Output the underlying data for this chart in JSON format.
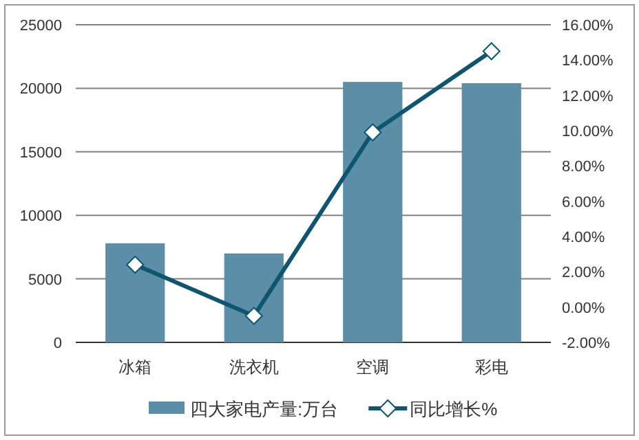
{
  "chart_data": {
    "type": "bar",
    "categories": [
      "冰箱",
      "洗衣机",
      "空调",
      "彩电"
    ],
    "series": [
      {
        "name": "四大家电产量:万台",
        "color": "#5b8fa8",
        "values": [
          7800,
          7000,
          20500,
          20400
        ]
      },
      {
        "name": "同比增长%",
        "type": "line",
        "axis": "y2",
        "color": "#0e5670",
        "marker": "diamond",
        "values": [
          2.4,
          -0.5,
          9.9,
          14.5
        ]
      }
    ],
    "ylim": [
      0,
      25000
    ],
    "yticks": [
      0,
      5000,
      10000,
      15000,
      20000,
      25000
    ],
    "y2lim": [
      -2,
      16
    ],
    "y2ticks": [
      {
        "value": -2,
        "label": "-2.00%"
      },
      {
        "value": 0,
        "label": "0.00%"
      },
      {
        "value": 2,
        "label": "2.00%"
      },
      {
        "value": 4,
        "label": "4.00%"
      },
      {
        "value": 6,
        "label": "6.00%"
      },
      {
        "value": 8,
        "label": "8.00%"
      },
      {
        "value": 10,
        "label": "10.00%"
      },
      {
        "value": 12,
        "label": "12.00%"
      },
      {
        "value": 14,
        "label": "14.00%"
      },
      {
        "value": 16,
        "label": "16.00%"
      }
    ],
    "grid": "y",
    "legend": "bottom"
  }
}
